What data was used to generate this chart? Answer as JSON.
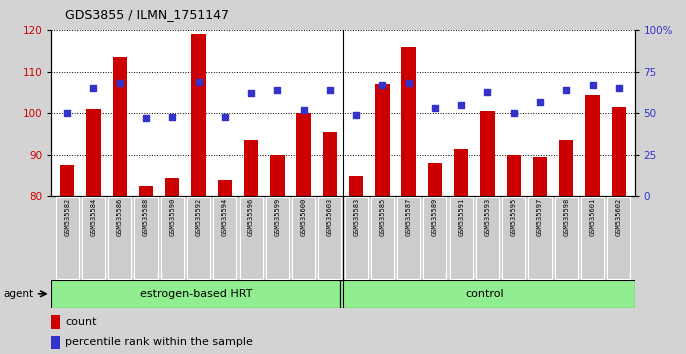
{
  "title": "GDS3855 / ILMN_1751147",
  "samples": [
    "GSM535582",
    "GSM535584",
    "GSM535586",
    "GSM535588",
    "GSM535590",
    "GSM535592",
    "GSM535594",
    "GSM535596",
    "GSM535599",
    "GSM535600",
    "GSM535603",
    "GSM535583",
    "GSM535585",
    "GSM535587",
    "GSM535589",
    "GSM535591",
    "GSM535593",
    "GSM535595",
    "GSM535597",
    "GSM535598",
    "GSM535601",
    "GSM535602"
  ],
  "counts": [
    87.5,
    101.0,
    113.5,
    82.5,
    84.5,
    119.0,
    84.0,
    93.5,
    90.0,
    100.0,
    95.5,
    85.0,
    107.0,
    116.0,
    88.0,
    91.5,
    100.5,
    90.0,
    89.5,
    93.5,
    104.5,
    101.5
  ],
  "percentiles": [
    50,
    65,
    68,
    47,
    48,
    69,
    48,
    62,
    64,
    52,
    64,
    49,
    67,
    68,
    53,
    55,
    63,
    50,
    57,
    64,
    67,
    65
  ],
  "groups": [
    "estrogen-based HRT",
    "estrogen-based HRT",
    "estrogen-based HRT",
    "estrogen-based HRT",
    "estrogen-based HRT",
    "estrogen-based HRT",
    "estrogen-based HRT",
    "estrogen-based HRT",
    "estrogen-based HRT",
    "estrogen-based HRT",
    "estrogen-based HRT",
    "control",
    "control",
    "control",
    "control",
    "control",
    "control",
    "control",
    "control",
    "control",
    "control",
    "control"
  ],
  "ylim_left": [
    80,
    120
  ],
  "ylim_right": [
    0,
    100
  ],
  "bar_color": "#cc0000",
  "dot_color": "#3333cc",
  "hrt_color": "#90ee90",
  "background_color": "#d3d3d3",
  "plot_bg_color": "#ffffff",
  "tick_bg_color": "#cccccc",
  "agent_label": "agent",
  "hrt_label": "estrogen-based HRT",
  "control_label": "control",
  "legend_count": "count",
  "legend_pct": "percentile rank within the sample",
  "yticks_left": [
    80,
    90,
    100,
    110,
    120
  ],
  "yticks_right": [
    0,
    25,
    50,
    75,
    100
  ],
  "ytick_labels_right": [
    "0",
    "25",
    "50",
    "75",
    "100%"
  ],
  "divider_idx": 11
}
